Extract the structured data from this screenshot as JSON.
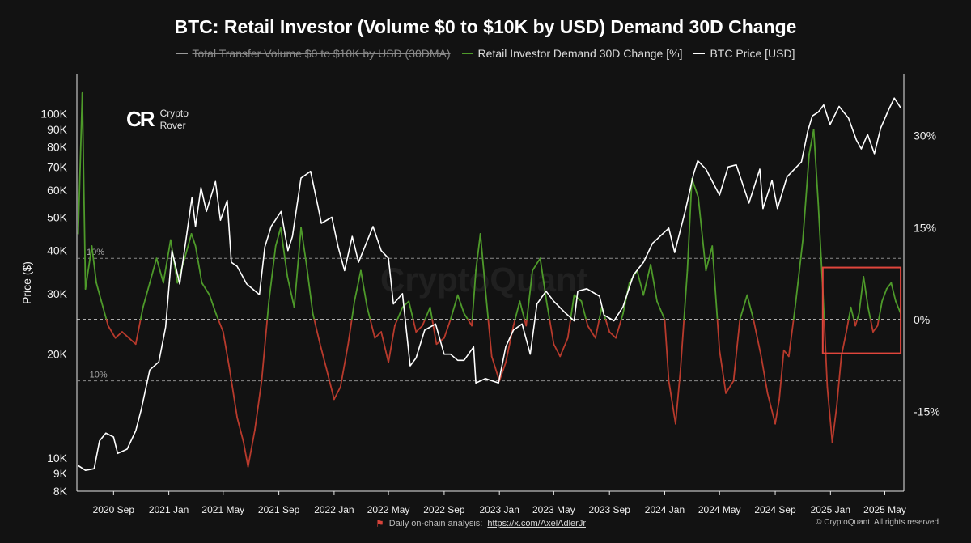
{
  "title": "BTC: Retail Investor (Volume $0 to $10K by USD) Demand 30D Change",
  "legend": [
    {
      "label": "Total Transfer Volume  $0 to $10K by USD (30DMA)",
      "color": "#9a9a9a",
      "disabled": true
    },
    {
      "label": "Retail Investor Demand 30D Change [%]",
      "color": "#4e9a2a",
      "disabled": false
    },
    {
      "label": "BTC Price [USD]",
      "color": "#ffffff",
      "disabled": false
    }
  ],
  "logo": {
    "line1": "Crypto",
    "line2": "Rover"
  },
  "watermark": "CryptoQuant",
  "footer": {
    "analysis_label": "Daily on-chain analysis:",
    "analysis_link": "https://x.com/AxelAdlerJr",
    "copyright": "© CryptoQuant. All rights reserved"
  },
  "colors": {
    "background": "#121212",
    "positive": "#4e9a2a",
    "negative": "#b83a2c",
    "price": "#ffffff",
    "highlight": "#e0463c"
  },
  "chart_data": {
    "type": "line",
    "title": "BTC: Retail Investor (Volume $0 to $10K by USD) Demand 30D Change",
    "x_ticks": [
      "2020 Sep",
      "2021 Jan",
      "2021 May",
      "2021 Sep",
      "2022 Jan",
      "2022 May",
      "2022 Sep",
      "2023 Jan",
      "2023 May",
      "2023 Sep",
      "2024 Jan",
      "2024 May",
      "2024 Sep",
      "2025 Jan",
      "2025 May"
    ],
    "y_left": {
      "label": "Price ($)",
      "scale": "log",
      "range": [
        8000,
        130000
      ],
      "ticks": [
        8000,
        9000,
        10000,
        20000,
        30000,
        40000,
        50000,
        60000,
        70000,
        80000,
        90000,
        100000
      ],
      "tick_labels": [
        "8K",
        "9K",
        "10K",
        "20K",
        "30K",
        "40K",
        "50K",
        "60K",
        "70K",
        "80K",
        "90K",
        "100K"
      ]
    },
    "y_right": {
      "range": [
        -28,
        40
      ],
      "ticks": [
        -15,
        0,
        15,
        30
      ],
      "tick_labels": [
        "-15%",
        "0%",
        "15%",
        "30%"
      ]
    },
    "reference_lines": [
      {
        "value": 10,
        "label": "10%"
      },
      {
        "value": 0,
        "label": ""
      },
      {
        "value": -10,
        "label": "-10%"
      }
    ],
    "highlight_box": {
      "x_start": "2024-12-15",
      "x_end": "2025-06-05",
      "y_start": -5.5,
      "y_end": 8.5
    },
    "series": [
      {
        "name": "BTC Price [USD]",
        "axis": "left",
        "points": [
          [
            "2020-06-15",
            9500
          ],
          [
            "2020-07-01",
            9200
          ],
          [
            "2020-07-20",
            9300
          ],
          [
            "2020-08-01",
            11200
          ],
          [
            "2020-08-15",
            11800
          ],
          [
            "2020-09-01",
            11500
          ],
          [
            "2020-09-10",
            10300
          ],
          [
            "2020-10-01",
            10600
          ],
          [
            "2020-10-20",
            12000
          ],
          [
            "2020-11-01",
            13800
          ],
          [
            "2020-11-20",
            18000
          ],
          [
            "2020-12-10",
            19000
          ],
          [
            "2020-12-25",
            24000
          ],
          [
            "2021-01-08",
            40000
          ],
          [
            "2021-01-25",
            32000
          ],
          [
            "2021-02-10",
            45000
          ],
          [
            "2021-02-21",
            57000
          ],
          [
            "2021-03-01",
            47000
          ],
          [
            "2021-03-13",
            61000
          ],
          [
            "2021-03-25",
            52000
          ],
          [
            "2021-04-14",
            63500
          ],
          [
            "2021-04-25",
            49000
          ],
          [
            "2021-05-10",
            56000
          ],
          [
            "2021-05-19",
            37000
          ],
          [
            "2021-06-01",
            36000
          ],
          [
            "2021-06-22",
            32000
          ],
          [
            "2021-07-20",
            29800
          ],
          [
            "2021-08-01",
            41000
          ],
          [
            "2021-08-15",
            47000
          ],
          [
            "2021-09-06",
            52000
          ],
          [
            "2021-09-21",
            40000
          ],
          [
            "2021-10-01",
            44000
          ],
          [
            "2021-10-20",
            65000
          ],
          [
            "2021-11-10",
            68000
          ],
          [
            "2021-11-26",
            54000
          ],
          [
            "2021-12-04",
            48000
          ],
          [
            "2021-12-27",
            50000
          ],
          [
            "2022-01-10",
            41000
          ],
          [
            "2022-01-24",
            35000
          ],
          [
            "2022-02-10",
            44000
          ],
          [
            "2022-02-24",
            37000
          ],
          [
            "2022-03-28",
            47000
          ],
          [
            "2022-04-15",
            40000
          ],
          [
            "2022-05-01",
            38000
          ],
          [
            "2022-05-12",
            28000
          ],
          [
            "2022-06-01",
            30000
          ],
          [
            "2022-06-18",
            18500
          ],
          [
            "2022-07-01",
            19500
          ],
          [
            "2022-07-20",
            23500
          ],
          [
            "2022-08-13",
            24500
          ],
          [
            "2022-09-01",
            20000
          ],
          [
            "2022-09-15",
            20000
          ],
          [
            "2022-10-01",
            19200
          ],
          [
            "2022-10-15",
            19200
          ],
          [
            "2022-11-05",
            21000
          ],
          [
            "2022-11-10",
            16500
          ],
          [
            "2022-12-01",
            17000
          ],
          [
            "2022-12-30",
            16500
          ],
          [
            "2023-01-15",
            21000
          ],
          [
            "2023-02-01",
            23500
          ],
          [
            "2023-02-20",
            24500
          ],
          [
            "2023-03-10",
            20000
          ],
          [
            "2023-03-25",
            28000
          ],
          [
            "2023-04-14",
            30500
          ],
          [
            "2023-05-01",
            28500
          ],
          [
            "2023-05-25",
            26500
          ],
          [
            "2023-06-15",
            25000
          ],
          [
            "2023-06-23",
            30500
          ],
          [
            "2023-07-13",
            31000
          ],
          [
            "2023-08-10",
            29500
          ],
          [
            "2023-08-20",
            26000
          ],
          [
            "2023-09-11",
            25000
          ],
          [
            "2023-10-01",
            27500
          ],
          [
            "2023-10-24",
            34000
          ],
          [
            "2023-11-15",
            37000
          ],
          [
            "2023-12-05",
            42000
          ],
          [
            "2024-01-10",
            46500
          ],
          [
            "2024-01-23",
            39500
          ],
          [
            "2024-02-15",
            52000
          ],
          [
            "2024-03-05",
            67000
          ],
          [
            "2024-03-14",
            73000
          ],
          [
            "2024-04-01",
            69000
          ],
          [
            "2024-05-01",
            58000
          ],
          [
            "2024-05-20",
            70000
          ],
          [
            "2024-06-07",
            71000
          ],
          [
            "2024-07-05",
            55000
          ],
          [
            "2024-07-29",
            69000
          ],
          [
            "2024-08-05",
            53000
          ],
          [
            "2024-08-25",
            64000
          ],
          [
            "2024-09-06",
            53000
          ],
          [
            "2024-09-27",
            65500
          ],
          [
            "2024-10-29",
            72500
          ],
          [
            "2024-11-12",
            89000
          ],
          [
            "2024-11-22",
            98500
          ],
          [
            "2024-12-05",
            101000
          ],
          [
            "2024-12-17",
            106000
          ],
          [
            "2024-12-31",
            93000
          ],
          [
            "2025-01-20",
            105000
          ],
          [
            "2025-02-10",
            97000
          ],
          [
            "2025-02-27",
            84000
          ],
          [
            "2025-03-10",
            79000
          ],
          [
            "2025-03-24",
            87000
          ],
          [
            "2025-04-08",
            76500
          ],
          [
            "2025-04-22",
            91000
          ],
          [
            "2025-05-10",
            103000
          ],
          [
            "2025-05-22",
            111000
          ],
          [
            "2025-06-05",
            104000
          ]
        ]
      },
      {
        "name": "Retail Investor Demand 30D Change [%]",
        "axis": "right",
        "points": [
          [
            "2020-06-15",
            14
          ],
          [
            "2020-06-24",
            37
          ],
          [
            "2020-07-01",
            5
          ],
          [
            "2020-07-15",
            12
          ],
          [
            "2020-07-25",
            6
          ],
          [
            "2020-08-05",
            3
          ],
          [
            "2020-08-20",
            -1
          ],
          [
            "2020-09-05",
            -3
          ],
          [
            "2020-09-20",
            -2
          ],
          [
            "2020-10-05",
            -3
          ],
          [
            "2020-10-20",
            -4
          ],
          [
            "2020-11-05",
            2
          ],
          [
            "2020-11-20",
            6
          ],
          [
            "2020-12-05",
            10
          ],
          [
            "2020-12-20",
            6
          ],
          [
            "2021-01-05",
            13
          ],
          [
            "2021-01-20",
            6
          ],
          [
            "2021-02-05",
            10
          ],
          [
            "2021-02-20",
            14
          ],
          [
            "2021-03-01",
            12
          ],
          [
            "2021-03-15",
            6
          ],
          [
            "2021-04-01",
            4
          ],
          [
            "2021-04-15",
            1
          ],
          [
            "2021-05-01",
            -2
          ],
          [
            "2021-05-15",
            -8
          ],
          [
            "2021-06-01",
            -16
          ],
          [
            "2021-06-15",
            -20
          ],
          [
            "2021-06-25",
            -24
          ],
          [
            "2021-07-10",
            -18
          ],
          [
            "2021-07-25",
            -10
          ],
          [
            "2021-08-10",
            3
          ],
          [
            "2021-08-25",
            12
          ],
          [
            "2021-09-05",
            15
          ],
          [
            "2021-09-20",
            7
          ],
          [
            "2021-10-05",
            2
          ],
          [
            "2021-10-20",
            15
          ],
          [
            "2021-11-01",
            9
          ],
          [
            "2021-11-15",
            1
          ],
          [
            "2021-12-01",
            -4
          ],
          [
            "2021-12-15",
            -8
          ],
          [
            "2022-01-01",
            -13
          ],
          [
            "2022-01-15",
            -11
          ],
          [
            "2022-02-01",
            -4
          ],
          [
            "2022-02-15",
            3
          ],
          [
            "2022-03-01",
            8
          ],
          [
            "2022-03-15",
            2
          ],
          [
            "2022-04-01",
            -3
          ],
          [
            "2022-04-15",
            -2
          ],
          [
            "2022-05-01",
            -7
          ],
          [
            "2022-05-15",
            -1
          ],
          [
            "2022-06-01",
            2
          ],
          [
            "2022-06-15",
            3
          ],
          [
            "2022-07-01",
            -2
          ],
          [
            "2022-07-15",
            -1
          ],
          [
            "2022-08-01",
            2
          ],
          [
            "2022-08-15",
            -4
          ],
          [
            "2022-09-01",
            -3
          ],
          [
            "2022-09-15",
            0
          ],
          [
            "2022-10-01",
            4
          ],
          [
            "2022-10-15",
            1
          ],
          [
            "2022-11-01",
            -1
          ],
          [
            "2022-11-10",
            8
          ],
          [
            "2022-11-20",
            14
          ],
          [
            "2022-12-01",
            5
          ],
          [
            "2022-12-15",
            -6
          ],
          [
            "2023-01-01",
            -10
          ],
          [
            "2023-01-15",
            -7
          ],
          [
            "2023-02-01",
            -1
          ],
          [
            "2023-02-15",
            3
          ],
          [
            "2023-03-01",
            -1
          ],
          [
            "2023-03-15",
            8
          ],
          [
            "2023-04-01",
            10
          ],
          [
            "2023-04-15",
            3
          ],
          [
            "2023-05-01",
            -4
          ],
          [
            "2023-05-15",
            -6
          ],
          [
            "2023-06-01",
            -3
          ],
          [
            "2023-06-15",
            4
          ],
          [
            "2023-07-01",
            3
          ],
          [
            "2023-07-15",
            -1
          ],
          [
            "2023-08-01",
            -3
          ],
          [
            "2023-08-15",
            2
          ],
          [
            "2023-09-01",
            -2
          ],
          [
            "2023-09-15",
            -3
          ],
          [
            "2023-10-01",
            1
          ],
          [
            "2023-10-15",
            6
          ],
          [
            "2023-11-01",
            8
          ],
          [
            "2023-11-15",
            4
          ],
          [
            "2023-12-01",
            9
          ],
          [
            "2023-12-15",
            3
          ],
          [
            "2024-01-01",
            0
          ],
          [
            "2024-01-10",
            -10
          ],
          [
            "2024-01-25",
            -17
          ],
          [
            "2024-02-05",
            -8
          ],
          [
            "2024-02-20",
            8
          ],
          [
            "2024-03-01",
            23
          ],
          [
            "2024-03-15",
            20
          ],
          [
            "2024-04-01",
            8
          ],
          [
            "2024-04-15",
            12
          ],
          [
            "2024-05-01",
            -5
          ],
          [
            "2024-05-15",
            -12
          ],
          [
            "2024-06-01",
            -10
          ],
          [
            "2024-06-15",
            0
          ],
          [
            "2024-07-01",
            4
          ],
          [
            "2024-07-15",
            0
          ],
          [
            "2024-08-01",
            -6
          ],
          [
            "2024-08-15",
            -12
          ],
          [
            "2024-09-01",
            -17
          ],
          [
            "2024-09-10",
            -13
          ],
          [
            "2024-09-20",
            -5
          ],
          [
            "2024-10-01",
            -6
          ],
          [
            "2024-10-15",
            2
          ],
          [
            "2024-11-01",
            13
          ],
          [
            "2024-11-15",
            27
          ],
          [
            "2024-11-25",
            31
          ],
          [
            "2024-12-05",
            19
          ],
          [
            "2024-12-15",
            5
          ],
          [
            "2024-12-25",
            -11
          ],
          [
            "2025-01-05",
            -20
          ],
          [
            "2025-01-15",
            -14
          ],
          [
            "2025-01-25",
            -6
          ],
          [
            "2025-02-05",
            -2
          ],
          [
            "2025-02-15",
            2
          ],
          [
            "2025-02-25",
            -1
          ],
          [
            "2025-03-05",
            1
          ],
          [
            "2025-03-15",
            7
          ],
          [
            "2025-03-25",
            2
          ],
          [
            "2025-04-05",
            -2
          ],
          [
            "2025-04-15",
            -1
          ],
          [
            "2025-04-25",
            3
          ],
          [
            "2025-05-05",
            5
          ],
          [
            "2025-05-15",
            6
          ],
          [
            "2025-05-25",
            3
          ],
          [
            "2025-06-05",
            1
          ]
        ]
      }
    ]
  }
}
